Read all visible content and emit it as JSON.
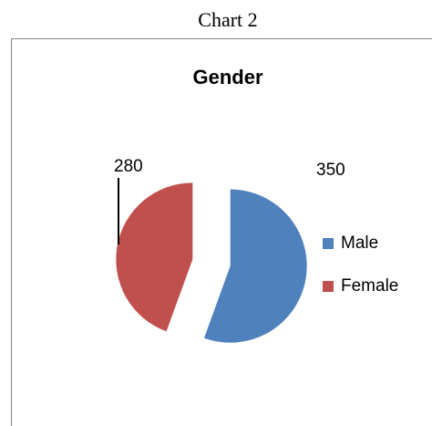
{
  "caption": "Chart 2",
  "chart_data": {
    "type": "pie",
    "title": "Gender",
    "categories": [
      "Male",
      "Female"
    ],
    "values": [
      350,
      280
    ],
    "colors": [
      "#4f81bd",
      "#c0504d"
    ],
    "legend": "right"
  }
}
